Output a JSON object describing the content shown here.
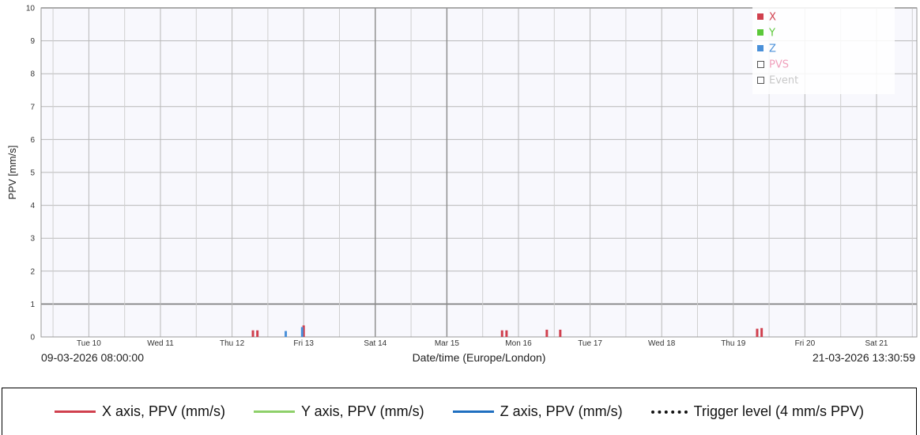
{
  "chart_data": {
    "type": "bar",
    "ylabel": "PPV [mm/s]",
    "xlabel": "Date/time (Europe/London)",
    "ylim": [
      0,
      10
    ],
    "yticks": [
      0,
      1,
      2,
      3,
      4,
      5,
      6,
      7,
      8,
      9,
      10
    ],
    "xlim": [
      "2026-03-09 08:00:00",
      "2026-03-21 13:30:59"
    ],
    "range_start_label": "09-03-2026 08:00:00",
    "range_end_label": "21-03-2026 13:30:59",
    "xticks": [
      {
        "label": "Tue 10",
        "date": "2026-03-10 00:00"
      },
      {
        "label": "Wed 11",
        "date": "2026-03-11 00:00"
      },
      {
        "label": "Thu 12",
        "date": "2026-03-12 00:00"
      },
      {
        "label": "Fri 13",
        "date": "2026-03-13 00:00"
      },
      {
        "label": "Sat 14",
        "date": "2026-03-14 00:00"
      },
      {
        "label": "Mar 15",
        "date": "2026-03-15 00:00"
      },
      {
        "label": "Mon 16",
        "date": "2026-03-16 00:00"
      },
      {
        "label": "Tue 17",
        "date": "2026-03-17 00:00"
      },
      {
        "label": "Wed 18",
        "date": "2026-03-18 00:00"
      },
      {
        "label": "Thu 19",
        "date": "2026-03-19 00:00"
      },
      {
        "label": "Fri 20",
        "date": "2026-03-20 00:00"
      },
      {
        "label": "Sat 21",
        "date": "2026-03-21 00:00"
      }
    ],
    "grid": true,
    "legend_position": "top-right",
    "series": [
      {
        "name": "X",
        "color": "#d0404e",
        "points": [
          {
            "x": "2026-03-12 07:00",
            "y": 0.2
          },
          {
            "x": "2026-03-12 08:30",
            "y": 0.2
          },
          {
            "x": "2026-03-13 00:00",
            "y": 0.35
          },
          {
            "x": "2026-03-15 18:30",
            "y": 0.2
          },
          {
            "x": "2026-03-15 20:00",
            "y": 0.2
          },
          {
            "x": "2026-03-16 09:30",
            "y": 0.22
          },
          {
            "x": "2026-03-16 14:00",
            "y": 0.22
          },
          {
            "x": "2026-03-19 08:00",
            "y": 0.25
          },
          {
            "x": "2026-03-19 09:30",
            "y": 0.27
          }
        ]
      },
      {
        "name": "Y",
        "color": "#5cc83a",
        "points": []
      },
      {
        "name": "Z",
        "color": "#4a90d9",
        "points": [
          {
            "x": "2026-03-12 18:00",
            "y": 0.18
          },
          {
            "x": "2026-03-12 23:30",
            "y": 0.3
          }
        ]
      }
    ],
    "inner_legend": [
      {
        "label": "X",
        "color": "#d0404e",
        "filled": true
      },
      {
        "label": "Y",
        "color": "#5cc83a",
        "filled": true
      },
      {
        "label": "Z",
        "color": "#4a90d9",
        "filled": true
      },
      {
        "label": "PVS",
        "color": "#f0a0bc",
        "filled": false
      },
      {
        "label": "Event",
        "color": "#c8c8c8",
        "filled": false
      }
    ],
    "bottom_legend": [
      {
        "label": "X axis, PPV (mm/s)",
        "color": "#d0404e",
        "style": "solid"
      },
      {
        "label": "Y axis, PPV (mm/s)",
        "color": "#8ed06a",
        "style": "solid"
      },
      {
        "label": "Z axis, PPV (mm/s)",
        "color": "#1f6fc0",
        "style": "solid"
      },
      {
        "label": "Trigger level (4 mm/s PPV)",
        "color": "#111111",
        "style": "dotted"
      }
    ]
  }
}
